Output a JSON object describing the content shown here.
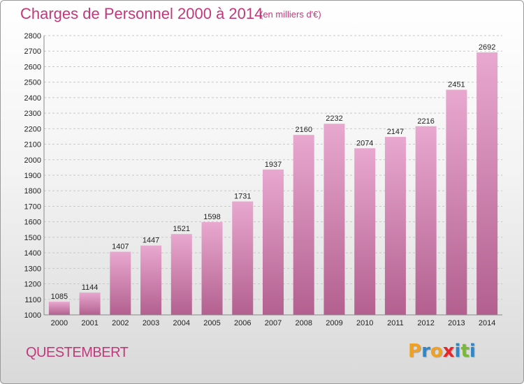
{
  "header": {
    "title": "Charges de Personnel 2000 à 2014",
    "subtitle": "(en milliers d'€)"
  },
  "footer": {
    "commune": "QUESTEMBERT",
    "logo": {
      "letters": [
        "P",
        "r",
        "o",
        "x",
        "i",
        "t",
        "i"
      ],
      "colors": [
        "#f0a022",
        "#2f86c8",
        "#f0a022",
        "#e8262a",
        "#2f86c8",
        "#7ab83a",
        "#2f86c8"
      ]
    }
  },
  "colors": {
    "title": "#c0397a",
    "bar_top": "#e8a8cf",
    "bar_bottom": "#b3608f",
    "grid": "#c8c8c8"
  },
  "chart_data": {
    "type": "bar",
    "categories": [
      "2000",
      "2001",
      "2002",
      "2003",
      "2004",
      "2005",
      "2006",
      "2007",
      "2008",
      "2009",
      "2010",
      "2011",
      "2012",
      "2013",
      "2014"
    ],
    "values": [
      1085,
      1144,
      1407,
      1447,
      1521,
      1598,
      1731,
      1937,
      2160,
      2232,
      2074,
      2147,
      2216,
      2451,
      2692
    ],
    "title": "Charges de Personnel 2000 à 2014",
    "xlabel": "",
    "ylabel": "",
    "ylim": [
      1000,
      2800
    ],
    "yticks": [
      1000,
      1100,
      1200,
      1300,
      1400,
      1500,
      1600,
      1700,
      1800,
      1900,
      2000,
      2100,
      2200,
      2300,
      2400,
      2500,
      2600,
      2700,
      2800
    ],
    "grid": true,
    "legend": "none"
  }
}
